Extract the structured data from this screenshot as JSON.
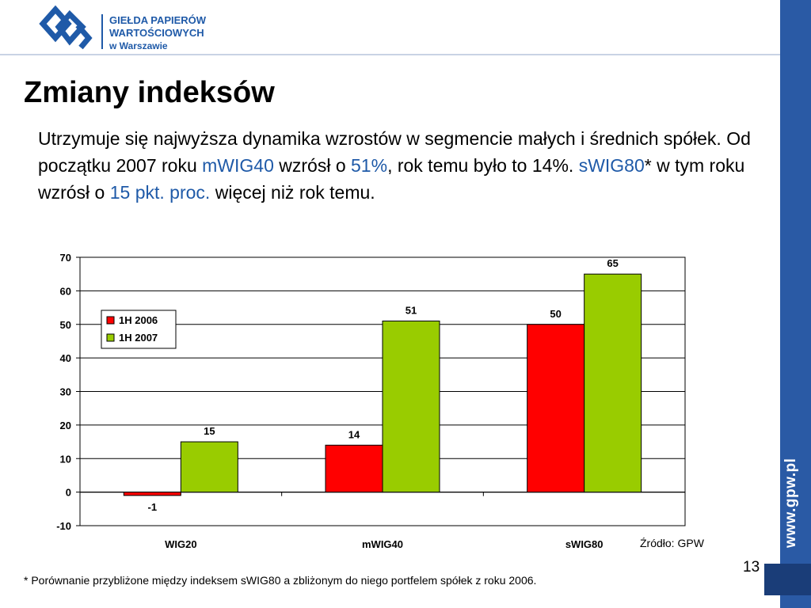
{
  "header": {
    "logo_line1": "GIEŁDA PAPIERÓW",
    "logo_line2": "WARTOŚCIOWYCH",
    "logo_line3": "w Warszawie",
    "side_url": "www.gpw.pl"
  },
  "slide": {
    "title": "Zmiany indeksów",
    "text": {
      "p1": "Utrzymuje się najwyższa dynamika wzrostów w segmencie małych i średnich spółek. Od początku 2007 roku ",
      "hl1": "mWIG40",
      "p2": " wzrósł o ",
      "hl2": "51%",
      "p3": ", rok temu było to 14%. ",
      "hl3": "sWIG80",
      "p4": "* w tym roku wzrósł o ",
      "hl4": "15 pkt. proc.",
      "p5": " więcej niż rok temu."
    },
    "source": "Źródło: GPW",
    "page_number": "13",
    "footnote": "* Porównanie przybliżone między indeksem sWIG80 a zbliżonym do niego portfelem spółek z roku 2006."
  },
  "colors": {
    "accent": "#1f5aa8",
    "sidebar": "#2a5aa5",
    "series_2006": "#ff0000",
    "series_2007": "#99cc00"
  },
  "chart_data": {
    "type": "bar",
    "categories": [
      "WIG20",
      "mWIG40",
      "sWIG80"
    ],
    "series": [
      {
        "name": "1H 2006",
        "values": [
          -1,
          14,
          50
        ],
        "labels": [
          "-1",
          "14",
          "50"
        ],
        "color": "#ff0000"
      },
      {
        "name": "1H 2007",
        "values": [
          15,
          51,
          65
        ],
        "labels": [
          "15",
          "51",
          "65"
        ],
        "color": "#99cc00"
      }
    ],
    "ylim": [
      -10,
      70
    ],
    "yticks": [
      -10,
      0,
      10,
      20,
      30,
      40,
      50,
      60,
      70
    ],
    "grid": true,
    "legend": "top-left"
  }
}
